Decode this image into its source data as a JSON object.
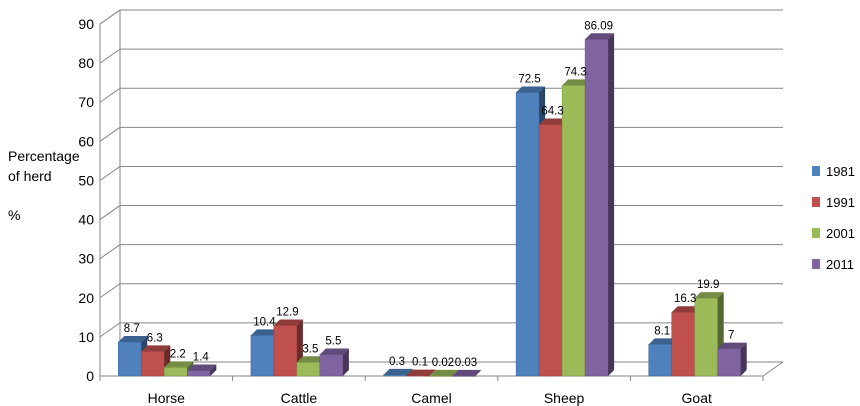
{
  "chart_data": {
    "type": "bar",
    "categories": [
      "Horse",
      "Cattle",
      "Camel",
      "Sheep",
      "Goat"
    ],
    "series": [
      {
        "name": "1981",
        "color": "#4F81BD",
        "values": [
          8.7,
          10.4,
          0.3,
          72.5,
          8.1
        ],
        "labels": [
          "8.7",
          "10.4",
          "0.3",
          "72.5",
          "8.1"
        ]
      },
      {
        "name": "1991",
        "color": "#C0504D",
        "values": [
          6.3,
          12.9,
          0.1,
          64.3,
          16.3
        ],
        "labels": [
          "6.3",
          "12.9",
          "0.1",
          "64.3",
          "16.3"
        ]
      },
      {
        "name": "2001",
        "color": "#9BBB59",
        "values": [
          2.2,
          3.5,
          0.02,
          74.3,
          19.9
        ],
        "labels": [
          "2.2",
          "3.5",
          "0.02",
          "74.3",
          "19.9"
        ]
      },
      {
        "name": "2011",
        "color": "#8064A2",
        "values": [
          1.4,
          5.5,
          0.03,
          86.09,
          7
        ],
        "labels": [
          "1.4",
          "5.5",
          "0.03",
          "86.09",
          "7"
        ]
      }
    ],
    "ylim": [
      0,
      90
    ],
    "yticks": [
      0,
      10,
      20,
      30,
      40,
      50,
      60,
      70,
      80,
      90
    ],
    "ylabel_lines": [
      "Percentage",
      "of herd",
      "%"
    ],
    "grid": true,
    "legend_position": "right"
  }
}
